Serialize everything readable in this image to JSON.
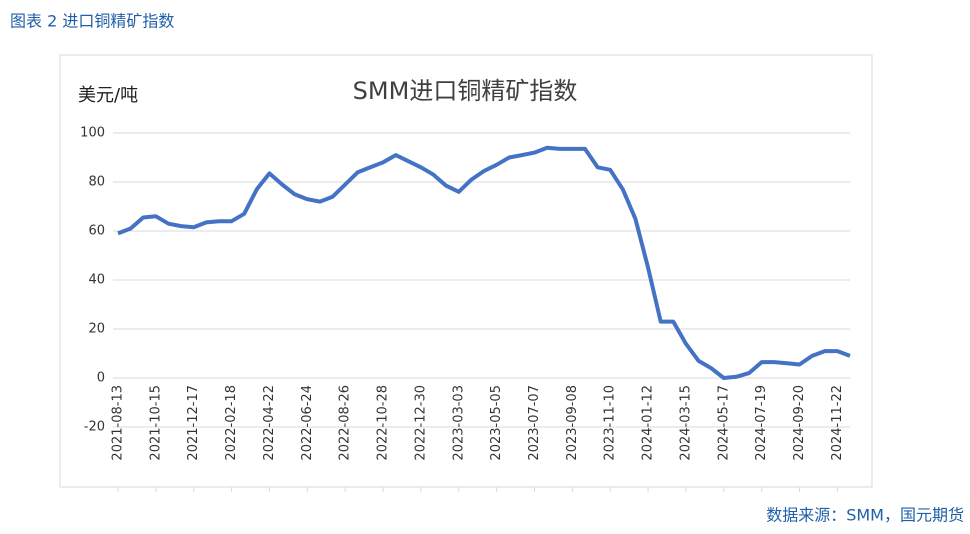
{
  "caption": "图表 2 进口铜精矿指数",
  "source": "数据来源：SMM，国元期货",
  "chart_data": {
    "type": "line",
    "title": "SMM进口铜精矿指数",
    "y_label": "美元/吨",
    "categories": [
      "2021-08-13",
      null,
      null,
      "2021-10-15",
      null,
      null,
      "2021-12-17",
      null,
      null,
      "2022-02-18",
      null,
      null,
      "2022-04-22",
      null,
      null,
      "2022-06-24",
      null,
      null,
      "2022-08-26",
      null,
      null,
      "2022-10-28",
      null,
      null,
      "2022-12-30",
      null,
      null,
      "2023-03-03",
      null,
      null,
      "2023-05-05",
      null,
      null,
      "2023-07-07",
      null,
      null,
      "2023-09-08",
      null,
      null,
      "2023-11-10",
      null,
      null,
      "2024-01-12",
      null,
      null,
      "2024-03-15",
      null,
      null,
      "2024-05-17",
      null,
      null,
      "2024-07-19",
      null,
      null,
      "2024-09-20",
      null,
      null,
      "2024-11-22",
      null
    ],
    "series": [
      {
        "name": "SMM进口铜精矿指数",
        "color": "#4472c4",
        "values": [
          59,
          61,
          65.5,
          66,
          63,
          62,
          61.5,
          63.5,
          64,
          64,
          67,
          77,
          83.5,
          79,
          75,
          73,
          72,
          74,
          79,
          84,
          86,
          88,
          91,
          88.5,
          86,
          83,
          78.5,
          76,
          81,
          84.5,
          87,
          90,
          91,
          92,
          94,
          93.5,
          93.5,
          93.5,
          86,
          85,
          77,
          65,
          45,
          23,
          23,
          14,
          7,
          4,
          0,
          0.5,
          2,
          6.5,
          6.5,
          6,
          5.5,
          9,
          11,
          11,
          9
        ]
      }
    ],
    "ylim": [
      -20,
      100
    ],
    "yticks": [
      -20,
      0,
      20,
      40,
      60,
      80,
      100
    ],
    "grid": true
  }
}
